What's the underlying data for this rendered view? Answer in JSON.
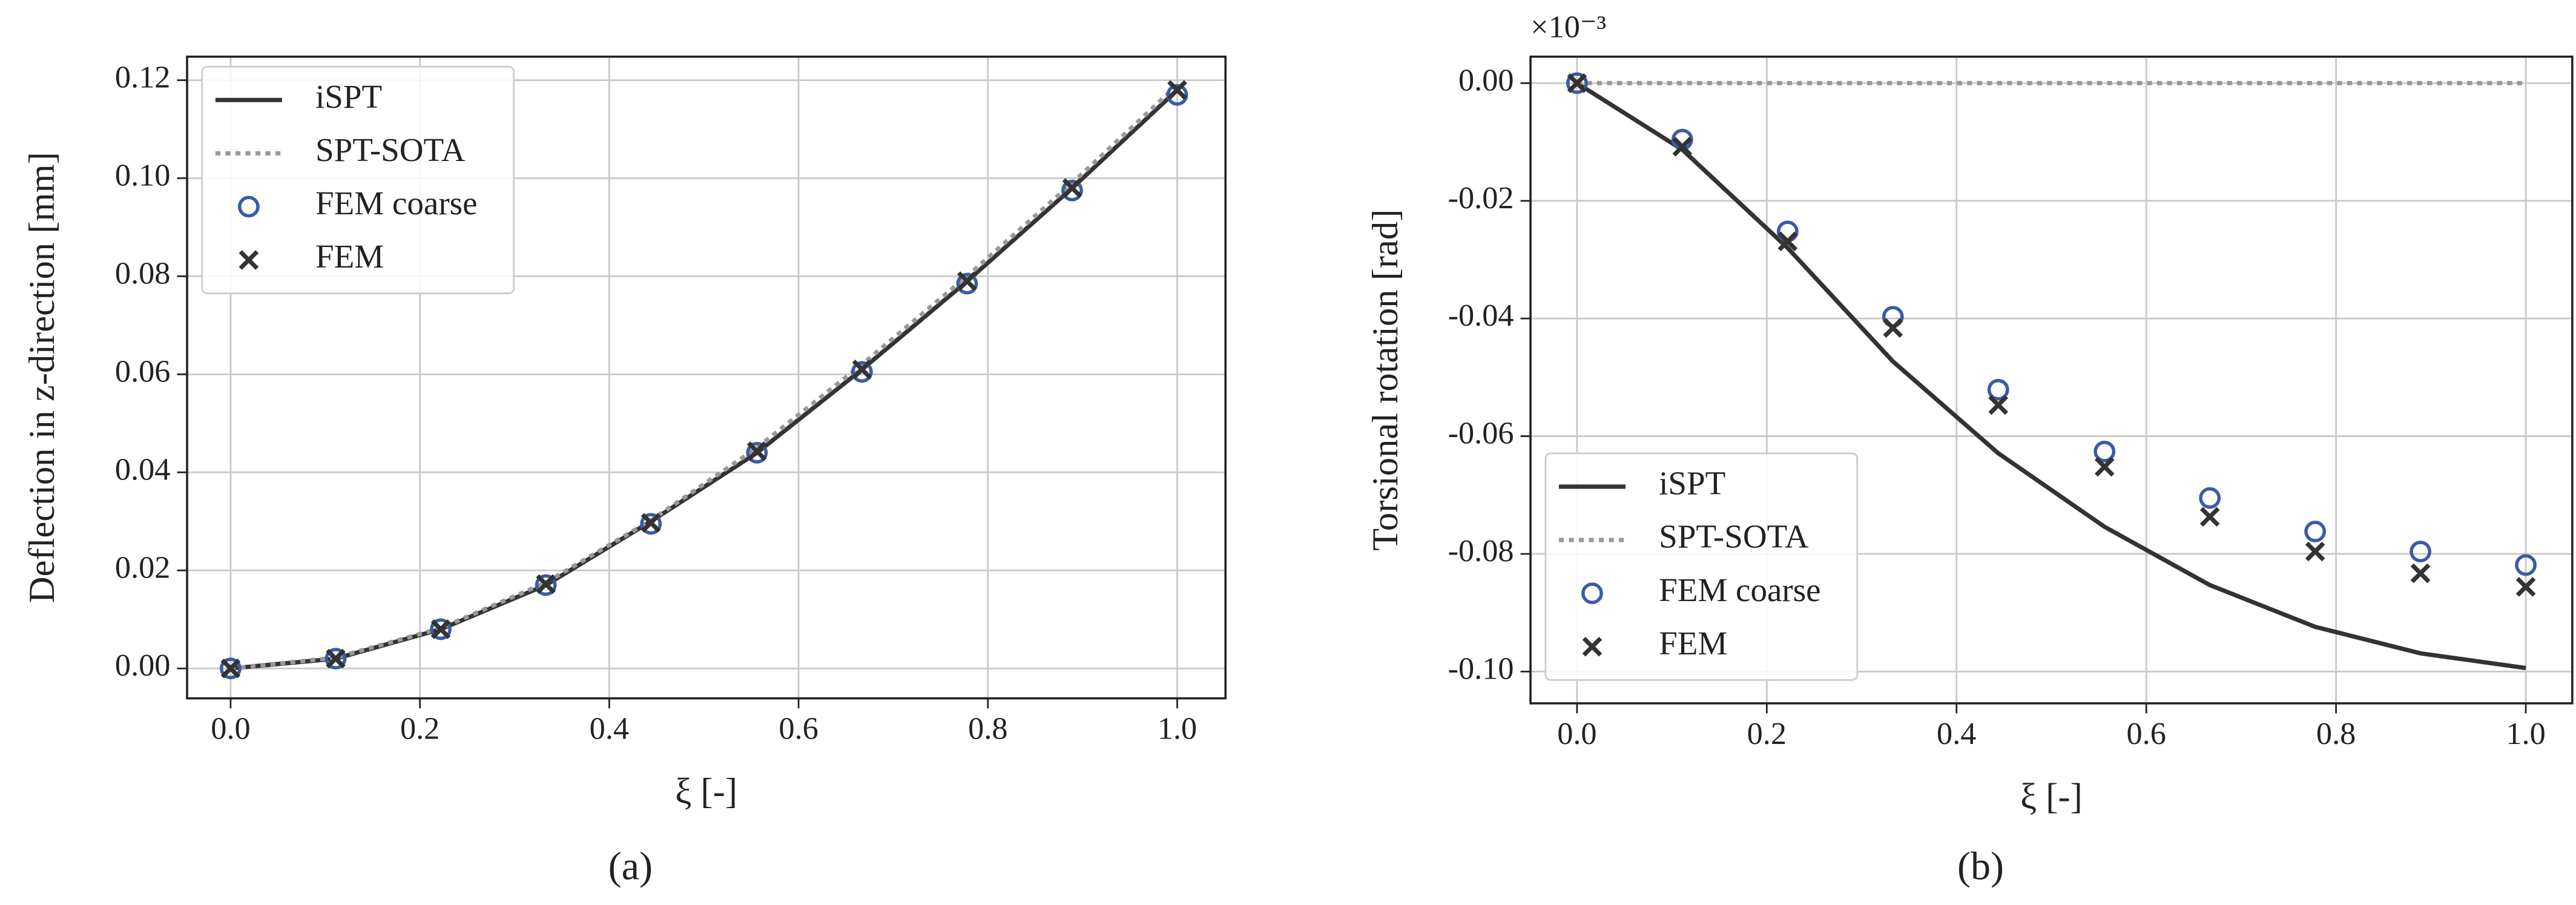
{
  "chart_data": [
    {
      "type": "line",
      "caption": "(a)",
      "xlabel": "ξ [-]",
      "ylabel": "Deflection in z-direction [mm]",
      "x": [
        0,
        0.111,
        0.222,
        0.333,
        0.444,
        0.556,
        0.667,
        0.778,
        0.889,
        1.0
      ],
      "series": [
        {
          "name": "iSPT",
          "style": "solid",
          "color": "#333333",
          "values": [
            0,
            0.002,
            0.008,
            0.017,
            0.03,
            0.044,
            0.061,
            0.079,
            0.098,
            0.118
          ]
        },
        {
          "name": "SPT-SOTA",
          "style": "dotted",
          "color": "#999999",
          "values": [
            0,
            0.0022,
            0.0082,
            0.0175,
            0.0302,
            0.045,
            0.062,
            0.08,
            0.099,
            0.119
          ]
        },
        {
          "name": "FEM coarse",
          "style": "circle",
          "color": "#3b5ba5",
          "values": [
            0,
            0.002,
            0.008,
            0.017,
            0.0295,
            0.044,
            0.0605,
            0.0785,
            0.0975,
            0.117
          ]
        },
        {
          "name": "FEM",
          "style": "x",
          "color": "#333333",
          "values": [
            0,
            0.002,
            0.008,
            0.0172,
            0.0297,
            0.0443,
            0.061,
            0.079,
            0.098,
            0.118
          ]
        }
      ],
      "xlim": [
        -0.046,
        1.051
      ],
      "ylim": [
        -0.0061,
        0.1248
      ],
      "xticks": [
        {
          "value": 0,
          "label": "0.0"
        },
        0.2,
        0.4,
        0.6,
        0.8,
        {
          "value": 1,
          "label": "1.0"
        }
      ],
      "yticks": [
        {
          "value": 0,
          "label": "0.00"
        },
        0.02,
        0.04,
        0.06,
        0.08,
        {
          "value": 0.1,
          "label": "0.10"
        },
        0.12
      ],
      "grid": true,
      "legend": "upper left"
    },
    {
      "type": "line",
      "caption": "(b)",
      "xlabel": "ξ [-]",
      "ylabel": "Torsional rotation [rad]",
      "y_offset_label": "×10⁻³",
      "x": [
        0,
        0.111,
        0.222,
        0.333,
        0.444,
        0.556,
        0.667,
        0.778,
        0.889,
        1.0
      ],
      "series": [
        {
          "name": "iSPT",
          "style": "solid",
          "color": "#333333",
          "values": [
            0,
            -0.0113,
            -0.028,
            -0.0473,
            -0.0629,
            -0.0754,
            -0.0853,
            -0.0924,
            -0.0969,
            -0.0994
          ]
        },
        {
          "name": "SPT-SOTA",
          "style": "dotted",
          "color": "#999999",
          "values": [
            0,
            0,
            0,
            0,
            0,
            0,
            0,
            0,
            0,
            0
          ]
        },
        {
          "name": "FEM coarse",
          "style": "circle",
          "color": "#3b5ba5",
          "values": [
            0,
            -0.0096,
            -0.0252,
            -0.0397,
            -0.0521,
            -0.0626,
            -0.0705,
            -0.0762,
            -0.0796,
            -0.0819
          ]
        },
        {
          "name": "FEM",
          "style": "x",
          "color": "#333333",
          "values": [
            0,
            -0.0108,
            -0.0269,
            -0.0416,
            -0.0547,
            -0.0652,
            -0.0737,
            -0.0796,
            -0.0833,
            -0.0856
          ]
        }
      ],
      "xlim": [
        -0.049,
        1.049
      ],
      "ylim": [
        -0.1054,
        0.0045
      ],
      "xticks": [
        {
          "value": 0,
          "label": "0.0"
        },
        0.2,
        0.4,
        0.6,
        0.8,
        {
          "value": 1,
          "label": "1.0"
        }
      ],
      "yticks": [
        {
          "value": 0,
          "label": "0.00"
        },
        -0.02,
        -0.04,
        -0.06,
        -0.08,
        {
          "value": -0.1,
          "label": "-0.10"
        }
      ],
      "grid": true,
      "legend": "lower left"
    }
  ]
}
